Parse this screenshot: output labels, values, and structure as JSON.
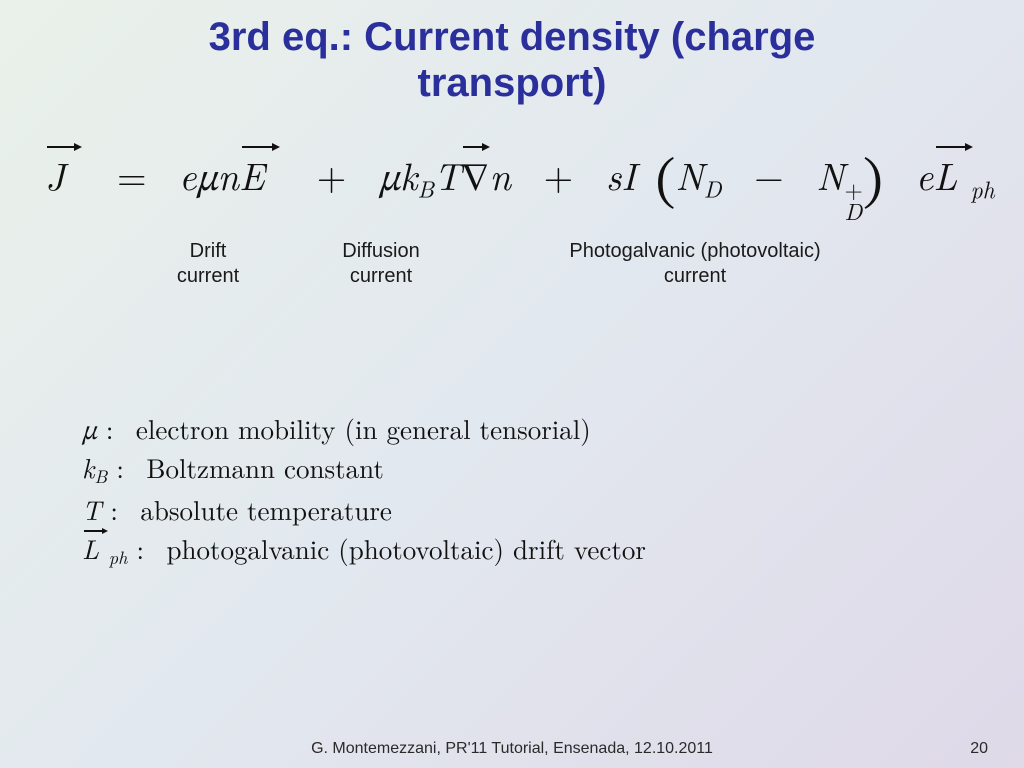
{
  "title_line1": "3rd eq.: Current density (charge",
  "title_line2": "transport)",
  "colors": {
    "title": "#2a2f9c",
    "text": "#111111",
    "bg_from": "#eaf1ea",
    "bg_to": "#dfd9e8"
  },
  "term_labels": {
    "drift": "Drift current",
    "diffusion": "Diffusion current",
    "photogalvanic": "Photogalvanic (photovoltaic) current"
  },
  "definitions": {
    "mu": "electron mobility (in general tensorial)",
    "kB": "Boltzmann constant",
    "T": "absolute temperature",
    "Lph": "photogalvanic (photovoltaic) drift vector"
  },
  "equation": {
    "lhs": "J",
    "terms": [
      "eμnE",
      "μk_B T ∇n",
      "sI(N_D − N_D⁺) e L_ph"
    ]
  },
  "footer": {
    "text": "G. Montemezzani, PR'11 Tutorial, Ensenada, 12.10.2011",
    "page": "20"
  }
}
